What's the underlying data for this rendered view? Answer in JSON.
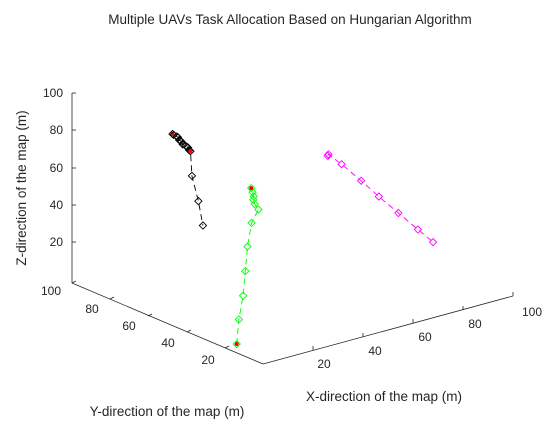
{
  "chart_data": {
    "type": "line3d",
    "title": "Multiple UAVs Task Allocation Based on Hungarian Algorithm",
    "xlabel": "X-direction of the map (m)",
    "ylabel": "Y-direction of the map (m)",
    "zlabel": "Z-direction of the map (m)",
    "xlim": [
      0,
      100
    ],
    "ylim": [
      0,
      100
    ],
    "zlim": [
      0,
      100
    ],
    "xticks": [
      "20",
      "40",
      "60",
      "80",
      "100"
    ],
    "yticks": [
      "20",
      "40",
      "60",
      "80",
      "100"
    ],
    "zticks": [
      "20",
      "40",
      "60",
      "80",
      "100"
    ],
    "grid": false,
    "marker": "diamond",
    "series": [
      {
        "color": "#000000",
        "points": [
          [
            2,
            50,
            99
          ],
          [
            4,
            52,
            97
          ],
          [
            6,
            53,
            95
          ],
          [
            8,
            55,
            93
          ],
          [
            10,
            57,
            90
          ],
          [
            12,
            59,
            88
          ],
          [
            14,
            61,
            86
          ],
          [
            16,
            63,
            83
          ],
          [
            18,
            64,
            81
          ],
          [
            20,
            66,
            79
          ],
          [
            22,
            68,
            77
          ],
          [
            24,
            70,
            74
          ],
          [
            26,
            72,
            72
          ],
          [
            22,
            66,
            63
          ],
          [
            20,
            60,
            53
          ],
          [
            18,
            55,
            43
          ]
        ],
        "highlight": [
          0,
          12
        ]
      },
      {
        "color": "#00ff00",
        "points": [
          [
            4,
            19,
            1
          ],
          [
            11,
            27,
            8
          ],
          [
            18,
            34,
            15
          ],
          [
            25,
            42,
            22
          ],
          [
            32,
            50,
            29
          ],
          [
            39,
            57,
            36
          ],
          [
            44,
            60,
            40
          ],
          [
            44,
            62,
            42
          ],
          [
            45,
            64,
            43
          ],
          [
            46,
            65,
            44
          ],
          [
            47,
            67,
            45
          ],
          [
            48,
            69,
            46
          ]
        ],
        "highlight": [
          0,
          11
        ]
      },
      {
        "color": "#ff00ff",
        "points": [
          [
            71,
            59,
            59
          ],
          [
            72,
            60,
            59
          ],
          [
            75,
            57,
            54
          ],
          [
            79,
            52,
            46
          ],
          [
            83,
            48,
            38
          ],
          [
            87,
            43,
            30
          ],
          [
            91,
            38,
            22
          ],
          [
            94,
            34,
            16
          ]
        ],
        "highlight": []
      }
    ],
    "highlight_color": "#ff0000"
  }
}
